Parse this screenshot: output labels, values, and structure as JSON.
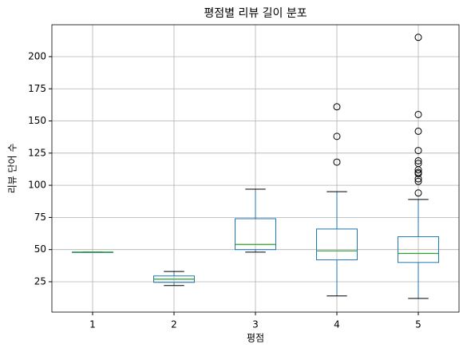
{
  "chart_data": {
    "type": "box",
    "title": "평점별 리뷰 길이 분포",
    "x_label": "평점",
    "y_label": "리뷰 단어 수",
    "categories": [
      "1",
      "2",
      "3",
      "4",
      "5"
    ],
    "boxes": [
      {
        "whislo": 48,
        "q1": 48,
        "med": 48,
        "q3": 48,
        "whishi": 48,
        "fliers": []
      },
      {
        "whislo": 22,
        "q1": 24.5,
        "med": 27,
        "q3": 29.5,
        "whishi": 33,
        "fliers": []
      },
      {
        "whislo": 48,
        "q1": 50,
        "med": 54,
        "q3": 74,
        "whishi": 97,
        "fliers": []
      },
      {
        "whislo": 14,
        "q1": 42,
        "med": 49,
        "q3": 66,
        "whishi": 95,
        "fliers": [
          161,
          138,
          118
        ]
      },
      {
        "whislo": 12,
        "q1": 40,
        "med": 47,
        "q3": 60,
        "whishi": 89,
        "fliers": [
          215,
          155,
          142,
          127,
          119,
          117,
          112,
          110,
          109,
          105,
          103,
          94
        ]
      }
    ],
    "box_color": "#1f77b4",
    "median_color": "#2ca02c",
    "whisker_color": "#000000",
    "ylim": [
      1.4,
      224.8
    ],
    "yticks": [
      25,
      50,
      75,
      100,
      125,
      150,
      175,
      200
    ],
    "grid": true
  }
}
